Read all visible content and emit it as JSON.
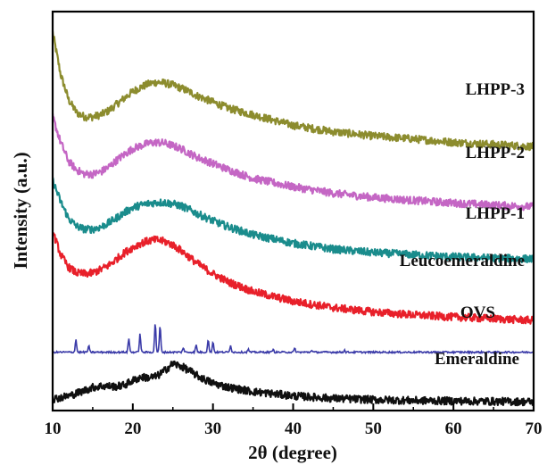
{
  "chart_data": {
    "type": "line",
    "xlabel": "2θ (degree)",
    "ylabel": "Intensity (a.u.)",
    "xlim": [
      10,
      70
    ],
    "x_ticks": [
      10,
      20,
      30,
      40,
      50,
      60,
      70
    ],
    "y_ticks_shown": false,
    "grid": false,
    "legend": "labels placed beside each curve, right side",
    "colors": {
      "LHPP-3": "#8c8c2e",
      "LHPP-2": "#c466c4",
      "LHPP-1": "#1a8c8c",
      "Leucoemeraldine": "#e8202a",
      "OVS": "#3a3aa8",
      "Emeraldine": "#101010"
    },
    "series": [
      {
        "name": "LHPP-3",
        "x": [
          10,
          11,
          12,
          13,
          14,
          15,
          16,
          17,
          18,
          19,
          20,
          21,
          22,
          23,
          24,
          25,
          26,
          27,
          28,
          30,
          32,
          35,
          40,
          45,
          50,
          55,
          60,
          65,
          70
        ],
        "y": [
          8.8,
          7.8,
          7.2,
          6.9,
          6.8,
          6.8,
          6.85,
          6.95,
          7.1,
          7.25,
          7.4,
          7.5,
          7.58,
          7.62,
          7.6,
          7.55,
          7.48,
          7.4,
          7.3,
          7.15,
          7.0,
          6.85,
          6.6,
          6.45,
          6.35,
          6.28,
          6.2,
          6.15,
          6.1
        ]
      },
      {
        "name": "LHPP-2",
        "x": [
          10,
          11,
          12,
          13,
          14,
          15,
          16,
          17,
          18,
          19,
          20,
          21,
          22,
          23,
          24,
          25,
          26,
          27,
          28,
          30,
          32,
          35,
          40,
          45,
          50,
          55,
          60,
          65,
          70
        ],
        "y": [
          6.8,
          6.2,
          5.75,
          5.55,
          5.45,
          5.45,
          5.5,
          5.62,
          5.78,
          5.92,
          6.05,
          6.12,
          6.18,
          6.2,
          6.18,
          6.12,
          6.05,
          5.95,
          5.85,
          5.7,
          5.55,
          5.35,
          5.15,
          5.0,
          4.9,
          4.83,
          4.77,
          4.72,
          4.68
        ]
      },
      {
        "name": "LHPP-1",
        "x": [
          10,
          11,
          12,
          13,
          14,
          15,
          16,
          17,
          18,
          19,
          20,
          21,
          22,
          23,
          24,
          25,
          26,
          27,
          28,
          30,
          32,
          35,
          40,
          45,
          50,
          55,
          60,
          65,
          70
        ],
        "y": [
          5.3,
          4.8,
          4.4,
          4.22,
          4.15,
          4.15,
          4.2,
          4.3,
          4.42,
          4.55,
          4.66,
          4.72,
          4.76,
          4.78,
          4.78,
          4.75,
          4.7,
          4.62,
          4.52,
          4.35,
          4.2,
          4.02,
          3.82,
          3.68,
          3.6,
          3.55,
          3.5,
          3.47,
          3.45
        ]
      },
      {
        "name": "Leucoemeraldine",
        "x": [
          10,
          11,
          12,
          13,
          14,
          15,
          16,
          17,
          18,
          19,
          20,
          21,
          22,
          23,
          24,
          25,
          26,
          27,
          28,
          30,
          32,
          35,
          40,
          45,
          50,
          55,
          60,
          65,
          70
        ],
        "y": [
          4.1,
          3.55,
          3.25,
          3.12,
          3.1,
          3.12,
          3.2,
          3.3,
          3.45,
          3.6,
          3.72,
          3.82,
          3.88,
          3.9,
          3.86,
          3.78,
          3.65,
          3.5,
          3.35,
          3.1,
          2.9,
          2.68,
          2.45,
          2.3,
          2.2,
          2.13,
          2.08,
          2.04,
          2.0
        ]
      },
      {
        "name": "OVS",
        "x": [
          10,
          12.9,
          14.5,
          19.5,
          20.9,
          22.8,
          23.4,
          26.3,
          27.9,
          29.4,
          30.0,
          32.2,
          34.4,
          37.5,
          40.2,
          42.3,
          46.4,
          70
        ],
        "y": [
          1.25,
          1.55,
          1.4,
          1.58,
          1.68,
          1.95,
          1.88,
          1.36,
          1.42,
          1.55,
          1.5,
          1.42,
          1.32,
          1.32,
          1.34,
          1.3,
          1.3,
          1.25
        ]
      },
      {
        "name": "Emeraldine",
        "x": [
          10,
          11,
          12,
          13,
          14,
          15,
          16,
          17,
          18,
          19,
          20,
          21,
          22,
          23,
          24,
          25,
          26,
          27,
          28,
          29,
          30,
          32,
          35,
          40,
          45,
          50,
          55,
          60,
          65,
          70
        ],
        "y": [
          0.15,
          0.18,
          0.22,
          0.28,
          0.35,
          0.42,
          0.45,
          0.45,
          0.44,
          0.48,
          0.58,
          0.66,
          0.65,
          0.68,
          0.82,
          0.98,
          0.92,
          0.82,
          0.7,
          0.6,
          0.52,
          0.42,
          0.32,
          0.22,
          0.16,
          0.13,
          0.11,
          0.1,
          0.09,
          0.08
        ]
      }
    ]
  }
}
